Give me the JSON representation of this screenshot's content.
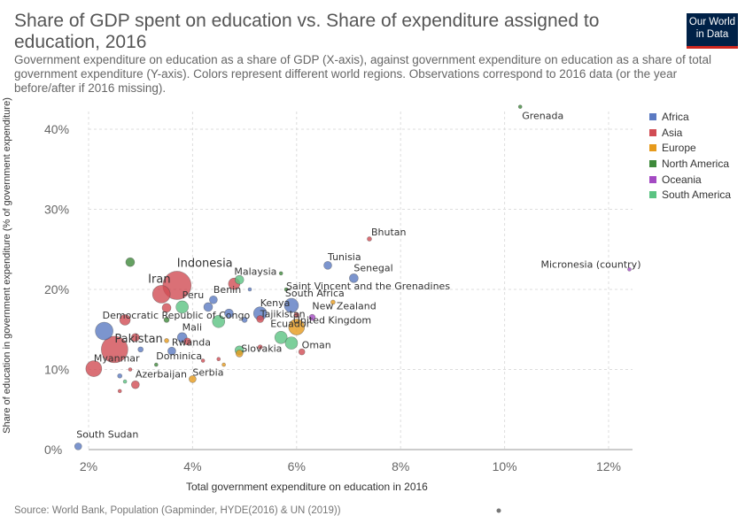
{
  "header": {
    "title": "Share of GDP spent on education vs. Share of expenditure assigned to education, 2016",
    "subtitle": "Government expenditure on education as a share of GDP (X-axis), against government expenditure on education as a share of total government expenditure (Y-axis). Colors represent different world regions. Observations correspond to 2016 data (or the year before/after if 2016 missing).",
    "logo_line1": "Our World",
    "logo_line2": "in Data"
  },
  "footer": {
    "source": "Source: World Bank, Population (Gapminder, HYDE(2016) & UN (2019))"
  },
  "colors": {
    "Africa": "#5b7ac2",
    "Asia": "#d14c54",
    "Europe": "#e69a1c",
    "North America": "#3e8a3b",
    "Oceania": "#a44ac3",
    "South America": "#5bc382"
  },
  "chart_data": {
    "type": "scatter",
    "title": "Share of GDP spent on education vs. Share of expenditure assigned to education, 2016",
    "xlabel": "Total government expenditure on education in 2016",
    "ylabel": "Share of education in government expenditure (% of government expenditure)",
    "xlim": [
      1.8,
      12.5
    ],
    "ylim": [
      0,
      43
    ],
    "x_ticks": [
      "2%",
      "4%",
      "6%",
      "8%",
      "10%",
      "12%"
    ],
    "y_ticks": [
      "0%",
      "10%",
      "20%",
      "30%",
      "40%"
    ],
    "x_tick_values": [
      2,
      4,
      6,
      8,
      10,
      12
    ],
    "y_tick_values": [
      0,
      10,
      20,
      30,
      40
    ],
    "legend": [
      "Africa",
      "Asia",
      "Europe",
      "North America",
      "Oceania",
      "South America"
    ],
    "legend_position": "right",
    "grid": true,
    "points": [
      {
        "label": "Grenada",
        "x": 10.3,
        "y": 42.8,
        "region": "North America",
        "r": 2
      },
      {
        "label": "Micronesia (country)",
        "x": 12.4,
        "y": 22.5,
        "region": "Oceania",
        "r": 2
      },
      {
        "label": "Bhutan",
        "x": 7.4,
        "y": 26.3,
        "region": "Asia",
        "r": 2.5
      },
      {
        "label": "Tunisia",
        "x": 6.6,
        "y": 23.0,
        "region": "Africa",
        "r": 4.5
      },
      {
        "label": "Senegal",
        "x": 7.1,
        "y": 21.4,
        "region": "Africa",
        "r": 5
      },
      {
        "label": "Saint Vincent and the Grenadines",
        "x": 5.8,
        "y": 20.0,
        "region": "North America",
        "r": 2
      },
      {
        "label": "South Africa",
        "x": 5.9,
        "y": 18.0,
        "region": "Africa",
        "r": 8
      },
      {
        "label": "New Zealand",
        "x": 6.3,
        "y": 16.5,
        "region": "Oceania",
        "r": 3.5
      },
      {
        "label": "Kenya",
        "x": 5.3,
        "y": 17.0,
        "region": "Africa",
        "r": 7.5
      },
      {
        "label": "Tajikistan",
        "x": 5.3,
        "y": 16.3,
        "region": "Asia",
        "r": 4
      },
      {
        "label": "United Kingdom",
        "x": 6.0,
        "y": 15.3,
        "region": "Europe",
        "r": 9
      },
      {
        "label": "Oman",
        "x": 6.1,
        "y": 12.2,
        "region": "Asia",
        "r": 3.5
      },
      {
        "label": "Malaysia",
        "x": 4.8,
        "y": 20.7,
        "region": "Asia",
        "r": 6.5
      },
      {
        "label": "Indonesia",
        "x": 3.7,
        "y": 20.5,
        "region": "Asia",
        "r": 16
      },
      {
        "label": "Iran",
        "x": 3.4,
        "y": 19.4,
        "region": "Asia",
        "r": 10
      },
      {
        "label": "Peru",
        "x": 3.8,
        "y": 17.8,
        "region": "South America",
        "r": 7
      },
      {
        "label": "Benin",
        "x": 4.4,
        "y": 18.7,
        "region": "Africa",
        "r": 4.5
      },
      {
        "label": "Democratic Republic of Congo",
        "x": 2.3,
        "y": 14.8,
        "region": "Africa",
        "r": 10
      },
      {
        "label": "Pakistan",
        "x": 2.5,
        "y": 12.5,
        "region": "Asia",
        "r": 15
      },
      {
        "label": "Mali",
        "x": 3.8,
        "y": 14.0,
        "region": "Africa",
        "r": 5.5
      },
      {
        "label": "Rwanda",
        "x": 3.6,
        "y": 12.3,
        "region": "Africa",
        "r": 4.5
      },
      {
        "label": "Myanmar",
        "x": 2.1,
        "y": 10.1,
        "region": "Asia",
        "r": 9
      },
      {
        "label": "Dominica",
        "x": 3.3,
        "y": 10.6,
        "region": "North America",
        "r": 2
      },
      {
        "label": "Ecuador",
        "x": 5.7,
        "y": 14.0,
        "region": "South America",
        "r": 7
      },
      {
        "label": "Slovakia",
        "x": 4.9,
        "y": 12.0,
        "region": "Europe",
        "r": 4
      },
      {
        "label": "Serbia",
        "x": 4.0,
        "y": 8.8,
        "region": "Europe",
        "r": 4
      },
      {
        "label": "Azerbaijan",
        "x": 2.9,
        "y": 8.1,
        "region": "Asia",
        "r": 4.5
      },
      {
        "label": "South Sudan",
        "x": 1.8,
        "y": 0.4,
        "region": "Africa",
        "r": 4
      },
      {
        "label": "",
        "x": 2.8,
        "y": 23.4,
        "region": "North America",
        "r": 5
      },
      {
        "label": "",
        "x": 4.5,
        "y": 16.0,
        "region": "South America",
        "r": 7
      },
      {
        "label": "",
        "x": 5.9,
        "y": 13.3,
        "region": "South America",
        "r": 7
      },
      {
        "label": "",
        "x": 4.9,
        "y": 12.4,
        "region": "South America",
        "r": 5
      },
      {
        "label": "",
        "x": 4.7,
        "y": 17.0,
        "region": "Africa",
        "r": 5
      },
      {
        "label": "",
        "x": 4.3,
        "y": 17.8,
        "region": "Africa",
        "r": 5
      },
      {
        "label": "",
        "x": 4.9,
        "y": 21.2,
        "region": "South America",
        "r": 5
      },
      {
        "label": "",
        "x": 3.5,
        "y": 17.7,
        "region": "Asia",
        "r": 5
      },
      {
        "label": "",
        "x": 2.7,
        "y": 16.2,
        "region": "Asia",
        "r": 6
      },
      {
        "label": "",
        "x": 2.9,
        "y": 14.0,
        "region": "Asia",
        "r": 4.5
      },
      {
        "label": "",
        "x": 3.9,
        "y": 13.5,
        "region": "Asia",
        "r": 4
      },
      {
        "label": "",
        "x": 3.5,
        "y": 13.6,
        "region": "Europe",
        "r": 2.5
      },
      {
        "label": "",
        "x": 2.8,
        "y": 10.0,
        "region": "Asia",
        "r": 2
      },
      {
        "label": "",
        "x": 2.6,
        "y": 9.2,
        "region": "Africa",
        "r": 2.5
      },
      {
        "label": "",
        "x": 3.0,
        "y": 12.5,
        "region": "Africa",
        "r": 3
      },
      {
        "label": "",
        "x": 4.2,
        "y": 11.1,
        "region": "Asia",
        "r": 2
      },
      {
        "label": "",
        "x": 4.5,
        "y": 11.3,
        "region": "Asia",
        "r": 2
      },
      {
        "label": "",
        "x": 5.3,
        "y": 12.8,
        "region": "Asia",
        "r": 2.5
      },
      {
        "label": "",
        "x": 5.0,
        "y": 16.2,
        "region": "Africa",
        "r": 3
      },
      {
        "label": "",
        "x": 5.1,
        "y": 20.0,
        "region": "Africa",
        "r": 2
      },
      {
        "label": "",
        "x": 6.7,
        "y": 18.4,
        "region": "Europe",
        "r": 2.5
      },
      {
        "label": "",
        "x": 6.0,
        "y": 16.8,
        "region": "Asia",
        "r": 3
      },
      {
        "label": "",
        "x": 5.7,
        "y": 22.0,
        "region": "North America",
        "r": 2
      },
      {
        "label": "",
        "x": 2.6,
        "y": 7.3,
        "region": "Asia",
        "r": 2
      },
      {
        "label": "",
        "x": 2.7,
        "y": 8.5,
        "region": "South America",
        "r": 2
      },
      {
        "label": "",
        "x": 3.5,
        "y": 16.2,
        "region": "North America",
        "r": 3
      },
      {
        "label": "",
        "x": 4.6,
        "y": 10.6,
        "region": "Europe",
        "r": 2
      }
    ]
  }
}
